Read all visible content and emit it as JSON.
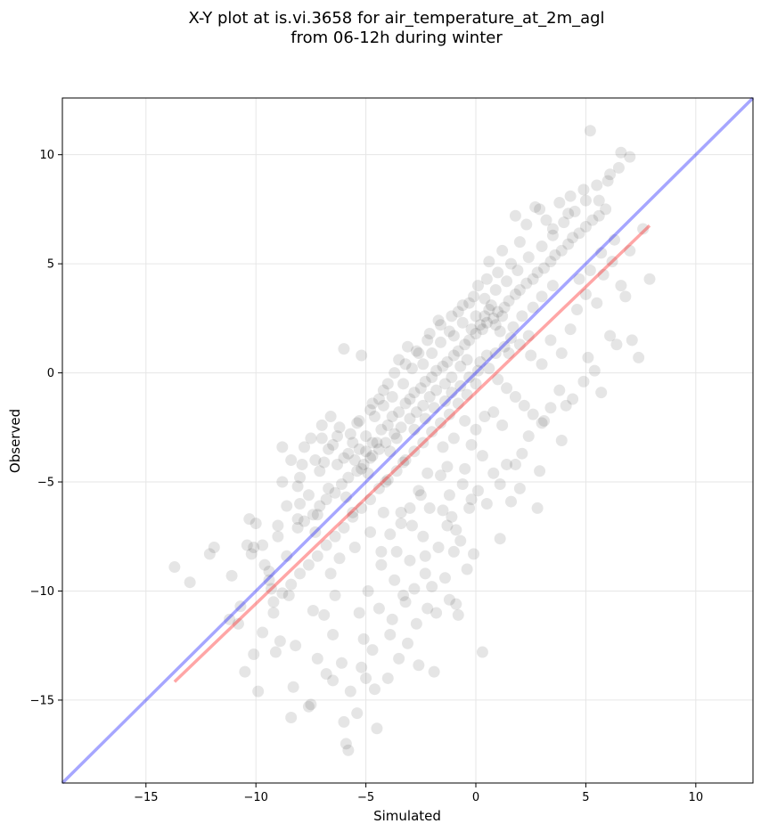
{
  "chart_data": {
    "type": "scatter",
    "title": "X-Y plot at is.vi.3658 for air_temperature_at_2m_agl",
    "subtitle": "from 06-12h during winter",
    "xlabel": "Simulated",
    "ylabel": "Observed",
    "xlim": [
      -18.8,
      12.6
    ],
    "ylim": [
      -18.8,
      12.6
    ],
    "xticks": [
      -15,
      -10,
      -5,
      0,
      5,
      10
    ],
    "yticks": [
      -15,
      -10,
      -5,
      0,
      5,
      10
    ],
    "xtick_labels": [
      "−15",
      "−10",
      "−5",
      "0",
      "5",
      "10"
    ],
    "ytick_labels": [
      "−15",
      "−10",
      "−5",
      "0",
      "5",
      "10"
    ],
    "grid": true,
    "colors": {
      "points": "#000000",
      "identity_line": "#0000ff",
      "fit_line": "#ff0000",
      "grid": "#e6e6e6"
    },
    "points": [
      [
        -13.7,
        -8.9
      ],
      [
        -13.0,
        -9.6
      ],
      [
        -12.1,
        -8.3
      ],
      [
        -11.9,
        -8.0
      ],
      [
        -11.2,
        -11.3
      ],
      [
        -11.1,
        -9.3
      ],
      [
        -10.7,
        -10.7
      ],
      [
        -10.5,
        -13.7
      ],
      [
        -10.3,
        -6.7
      ],
      [
        -10.0,
        -6.9
      ],
      [
        -9.9,
        -14.6
      ],
      [
        -10.4,
        -7.9
      ],
      [
        -10.2,
        -8.3
      ],
      [
        -10.1,
        -8.0
      ],
      [
        -9.7,
        -7.9
      ],
      [
        -9.6,
        -8.8
      ],
      [
        -9.4,
        -9.5
      ],
      [
        -9.3,
        -9.9
      ],
      [
        -9.2,
        -11.0
      ],
      [
        -9.1,
        -12.8
      ],
      [
        -9.0,
        -7.0
      ],
      [
        -8.8,
        -5.0
      ],
      [
        -8.6,
        -8.4
      ],
      [
        -8.5,
        -10.2
      ],
      [
        -8.4,
        -15.8
      ],
      [
        -8.3,
        -14.4
      ],
      [
        -8.2,
        -12.5
      ],
      [
        -8.1,
        -5.2
      ],
      [
        -8.0,
        -6.0
      ],
      [
        -7.9,
        -4.2
      ],
      [
        -7.8,
        -3.4
      ],
      [
        -7.6,
        -15.3
      ],
      [
        -7.5,
        -15.2
      ],
      [
        -7.4,
        -10.9
      ],
      [
        -7.3,
        -7.3
      ],
      [
        -7.2,
        -6.5
      ],
      [
        -7.0,
        -3.0
      ],
      [
        -6.9,
        -11.1
      ],
      [
        -6.8,
        -13.8
      ],
      [
        -6.7,
        -5.3
      ],
      [
        -6.6,
        -9.2
      ],
      [
        -6.5,
        -12.0
      ],
      [
        -6.4,
        -10.2
      ],
      [
        -6.3,
        -2.9
      ],
      [
        -6.2,
        -8.5
      ],
      [
        -6.1,
        -13.3
      ],
      [
        -6.0,
        -16.0
      ],
      [
        -5.9,
        -17.0
      ],
      [
        -5.8,
        -17.3
      ],
      [
        -5.7,
        -14.6
      ],
      [
        -5.6,
        -6.4
      ],
      [
        -5.5,
        -8.0
      ],
      [
        -5.4,
        -2.3
      ],
      [
        -5.3,
        -11.0
      ],
      [
        -5.2,
        -13.5
      ],
      [
        -5.1,
        -12.2
      ],
      [
        -5.0,
        -14.0
      ],
      [
        -4.9,
        -10.0
      ],
      [
        -4.8,
        -7.3
      ],
      [
        -4.7,
        -3.2
      ],
      [
        -4.6,
        -14.5
      ],
      [
        -4.5,
        -16.3
      ],
      [
        -4.4,
        -10.8
      ],
      [
        -4.3,
        -8.8
      ],
      [
        -4.2,
        -6.4
      ],
      [
        -4.1,
        -5.0
      ],
      [
        -4.0,
        -14.0
      ],
      [
        -3.9,
        -12.0
      ],
      [
        -3.8,
        -11.3
      ],
      [
        -3.7,
        -9.5
      ],
      [
        -3.6,
        -8.2
      ],
      [
        -3.5,
        -13.1
      ],
      [
        -3.4,
        -6.4
      ],
      [
        -3.3,
        -4.1
      ],
      [
        -3.2,
        -10.5
      ],
      [
        -3.1,
        -12.4
      ],
      [
        -3.0,
        -8.6
      ],
      [
        -2.9,
        -7.0
      ],
      [
        -2.8,
        -9.9
      ],
      [
        -2.7,
        -11.5
      ],
      [
        -2.6,
        -13.4
      ],
      [
        -2.5,
        -5.6
      ],
      [
        -2.4,
        -7.5
      ],
      [
        -2.3,
        -8.4
      ],
      [
        -2.2,
        -10.8
      ],
      [
        -2.1,
        -6.2
      ],
      [
        -2.0,
        -9.8
      ],
      [
        -1.9,
        -13.7
      ],
      [
        -1.8,
        -11.0
      ],
      [
        -1.7,
        -8.0
      ],
      [
        -1.6,
        -4.7
      ],
      [
        -1.5,
        -6.3
      ],
      [
        -1.4,
        -9.4
      ],
      [
        -1.3,
        -7.0
      ],
      [
        -1.2,
        -5.6
      ],
      [
        -1.1,
        -6.6
      ],
      [
        -1.0,
        -8.2
      ],
      [
        -0.9,
        -10.6
      ],
      [
        -0.8,
        -11.1
      ],
      [
        -0.7,
        -7.7
      ],
      [
        -0.6,
        -5.1
      ],
      [
        -0.5,
        -4.4
      ],
      [
        -0.4,
        -9.0
      ],
      [
        -0.3,
        -6.2
      ],
      [
        -0.2,
        -5.8
      ],
      [
        -0.1,
        -8.3
      ],
      [
        0.1,
        -5.4
      ],
      [
        0.3,
        -12.8
      ],
      [
        0.5,
        -6.0
      ],
      [
        0.8,
        -4.6
      ],
      [
        1.1,
        -5.1
      ],
      [
        1.4,
        -4.2
      ],
      [
        1.6,
        -5.9
      ],
      [
        1.8,
        -4.2
      ],
      [
        2.1,
        -3.7
      ],
      [
        2.4,
        -2.9
      ],
      [
        2.8,
        -6.2
      ],
      [
        3.1,
        -2.2
      ],
      [
        3.4,
        -1.6
      ],
      [
        3.8,
        -0.8
      ],
      [
        4.1,
        -1.5
      ],
      [
        4.4,
        -1.2
      ],
      [
        4.9,
        -0.4
      ],
      [
        5.1,
        0.7
      ],
      [
        5.4,
        0.1
      ],
      [
        5.7,
        -0.9
      ],
      [
        6.1,
        1.7
      ],
      [
        6.4,
        1.3
      ],
      [
        6.8,
        3.5
      ],
      [
        7.1,
        1.5
      ],
      [
        7.4,
        0.7
      ],
      [
        7.9,
        4.3
      ],
      [
        7.6,
        6.6
      ],
      [
        7.0,
        9.9
      ],
      [
        6.6,
        10.1
      ],
      [
        6.1,
        9.1
      ],
      [
        5.6,
        7.9
      ],
      [
        5.2,
        11.1
      ],
      [
        4.9,
        8.4
      ],
      [
        4.2,
        7.3
      ],
      [
        3.5,
        6.6
      ],
      [
        2.9,
        7.5
      ],
      [
        2.3,
        6.8
      ],
      [
        1.8,
        7.2
      ],
      [
        1.2,
        5.6
      ],
      [
        0.6,
        5.1
      ],
      [
        0.1,
        4.0
      ],
      [
        -0.3,
        3.2
      ],
      [
        -0.8,
        2.8
      ],
      [
        -1.2,
        1.9
      ],
      [
        -1.7,
        2.4
      ],
      [
        -2.1,
        1.8
      ],
      [
        -2.6,
        0.9
      ],
      [
        -3.1,
        1.2
      ],
      [
        -3.5,
        0.6
      ],
      [
        -4.0,
        -0.5
      ],
      [
        -4.4,
        -1.2
      ],
      [
        -4.8,
        -1.7
      ],
      [
        -5.2,
        0.8
      ],
      [
        -5.7,
        -2.8
      ],
      [
        -6.0,
        1.1
      ],
      [
        -6.5,
        -3.3
      ],
      [
        -6.9,
        -4.1
      ],
      [
        -7.3,
        -4.0
      ],
      [
        -7.6,
        -5.6
      ],
      [
        -8.1,
        -6.7
      ],
      [
        -8.6,
        -6.1
      ],
      [
        -9.0,
        -7.5
      ],
      [
        -9.4,
        -9.1
      ],
      [
        -5.5,
        -4.0
      ],
      [
        -5.2,
        -4.4
      ],
      [
        -5.0,
        -3.6
      ],
      [
        -4.8,
        -3.9
      ],
      [
        -5.3,
        -3.5
      ],
      [
        -5.8,
        -3.7
      ],
      [
        -4.5,
        -3.2
      ],
      [
        -4.3,
        -2.6
      ],
      [
        -4.0,
        -2.4
      ],
      [
        -3.8,
        -2.0
      ],
      [
        -3.5,
        -1.8
      ],
      [
        -3.2,
        -1.4
      ],
      [
        -3.0,
        -1.2
      ],
      [
        -2.8,
        -0.9
      ],
      [
        -2.5,
        -0.7
      ],
      [
        -2.3,
        -0.4
      ],
      [
        -2.0,
        -0.2
      ],
      [
        -1.8,
        0.1
      ],
      [
        -1.5,
        0.3
      ],
      [
        -1.3,
        0.5
      ],
      [
        -1.0,
        0.8
      ],
      [
        -0.8,
        1.0
      ],
      [
        -0.5,
        1.3
      ],
      [
        -0.3,
        1.5
      ],
      [
        0.0,
        1.8
      ],
      [
        0.3,
        2.0
      ],
      [
        0.5,
        2.3
      ],
      [
        0.8,
        2.5
      ],
      [
        1.0,
        2.8
      ],
      [
        1.3,
        3.0
      ],
      [
        1.5,
        3.3
      ],
      [
        1.8,
        3.6
      ],
      [
        2.0,
        3.8
      ],
      [
        2.3,
        4.1
      ],
      [
        2.6,
        4.3
      ],
      [
        2.8,
        4.6
      ],
      [
        3.1,
        4.8
      ],
      [
        3.4,
        5.1
      ],
      [
        3.6,
        5.4
      ],
      [
        3.9,
        5.6
      ],
      [
        4.2,
        5.9
      ],
      [
        4.4,
        6.2
      ],
      [
        4.7,
        6.4
      ],
      [
        5.0,
        6.7
      ],
      [
        5.3,
        7.0
      ],
      [
        5.6,
        7.2
      ],
      [
        5.9,
        7.5
      ],
      [
        0.6,
        2.9
      ],
      [
        0.9,
        2.2
      ],
      [
        1.1,
        1.9
      ],
      [
        0.4,
        2.6
      ],
      [
        0.7,
        3.1
      ],
      [
        1.2,
        2.6
      ],
      [
        0.2,
        2.2
      ],
      [
        -0.2,
        2.0
      ],
      [
        -0.4,
        0.6
      ],
      [
        -0.7,
        0.3
      ],
      [
        -1.1,
        -0.2
      ],
      [
        -1.4,
        -0.5
      ],
      [
        -1.8,
        -0.8
      ],
      [
        -2.1,
        -1.1
      ],
      [
        -2.4,
        -1.5
      ],
      [
        -2.7,
        -1.8
      ],
      [
        -3.0,
        -2.1
      ],
      [
        -3.4,
        -2.5
      ],
      [
        -3.7,
        -2.8
      ],
      [
        -4.1,
        -3.2
      ],
      [
        -4.4,
        -3.5
      ],
      [
        -4.7,
        -3.8
      ],
      [
        -5.1,
        -4.2
      ],
      [
        -5.4,
        -4.5
      ],
      [
        -5.8,
        -4.8
      ],
      [
        -6.1,
        -5.1
      ],
      [
        -6.4,
        -5.5
      ],
      [
        -6.8,
        -5.8
      ],
      [
        -7.1,
        -6.1
      ],
      [
        -7.4,
        -6.5
      ],
      [
        -7.8,
        -6.8
      ],
      [
        -8.1,
        -7.1
      ],
      [
        -6.3,
        -4.2
      ],
      [
        -6.7,
        -3.5
      ],
      [
        -7.1,
        -4.5
      ],
      [
        -7.5,
        -3.0
      ],
      [
        -8.0,
        -4.8
      ],
      [
        -8.4,
        -4.0
      ],
      [
        -8.8,
        -3.4
      ],
      [
        -6.0,
        -3.9
      ],
      [
        -5.6,
        -3.2
      ],
      [
        -5.0,
        -2.9
      ],
      [
        -4.6,
        -2.0
      ],
      [
        -4.2,
        -1.5
      ],
      [
        -3.8,
        -1.1
      ],
      [
        -3.3,
        -0.5
      ],
      [
        -2.9,
        0.2
      ],
      [
        -2.4,
        0.4
      ],
      [
        -2.0,
        0.9
      ],
      [
        -1.6,
        1.4
      ],
      [
        -1.0,
        1.7
      ],
      [
        -0.6,
        2.3
      ],
      [
        0.0,
        2.6
      ],
      [
        0.4,
        3.4
      ],
      [
        0.9,
        3.8
      ],
      [
        1.4,
        4.2
      ],
      [
        1.9,
        4.7
      ],
      [
        2.4,
        5.3
      ],
      [
        3.0,
        5.8
      ],
      [
        3.5,
        6.3
      ],
      [
        4.0,
        6.9
      ],
      [
        4.5,
        7.4
      ],
      [
        5.0,
        7.9
      ],
      [
        5.5,
        8.6
      ],
      [
        6.0,
        8.8
      ],
      [
        6.5,
        9.4
      ],
      [
        2.0,
        6.0
      ],
      [
        2.7,
        7.6
      ],
      [
        1.6,
        5.0
      ],
      [
        3.2,
        7.0
      ],
      [
        3.8,
        7.8
      ],
      [
        4.3,
        8.1
      ],
      [
        1.0,
        4.6
      ],
      [
        0.5,
        4.3
      ],
      [
        -0.1,
        3.5
      ],
      [
        -0.6,
        3.1
      ],
      [
        -1.1,
        2.6
      ],
      [
        -1.6,
        2.2
      ],
      [
        -2.2,
        1.5
      ],
      [
        -2.7,
        1.0
      ],
      [
        -3.2,
        0.4
      ],
      [
        -3.7,
        0.0
      ],
      [
        -4.2,
        -0.8
      ],
      [
        -4.7,
        -1.4
      ],
      [
        -5.3,
        -2.2
      ],
      [
        -6.2,
        -2.5
      ],
      [
        -6.6,
        -2.0
      ],
      [
        -7.0,
        -2.4
      ],
      [
        0.2,
        0.5
      ],
      [
        0.6,
        0.2
      ],
      [
        1.0,
        -0.3
      ],
      [
        1.4,
        -0.7
      ],
      [
        1.8,
        -1.1
      ],
      [
        2.2,
        -1.5
      ],
      [
        2.6,
        -1.9
      ],
      [
        3.0,
        -2.3
      ],
      [
        0.0,
        -0.5
      ],
      [
        -0.4,
        -1.0
      ],
      [
        -0.8,
        -1.4
      ],
      [
        -1.2,
        -1.9
      ],
      [
        -1.6,
        -2.3
      ],
      [
        -2.0,
        -2.7
      ],
      [
        -2.4,
        -3.2
      ],
      [
        -2.8,
        -3.6
      ],
      [
        -3.2,
        -4.0
      ],
      [
        -3.6,
        -4.5
      ],
      [
        -4.0,
        -4.9
      ],
      [
        -4.4,
        -5.3
      ],
      [
        -4.8,
        -5.8
      ],
      [
        -5.2,
        -6.2
      ],
      [
        -5.6,
        -6.6
      ],
      [
        -6.0,
        -7.1
      ],
      [
        -6.4,
        -7.5
      ],
      [
        -6.8,
        -7.9
      ],
      [
        -7.2,
        -8.4
      ],
      [
        -7.6,
        -8.8
      ],
      [
        -8.0,
        -9.2
      ],
      [
        -8.4,
        -9.7
      ],
      [
        -8.8,
        -10.1
      ],
      [
        -9.2,
        -10.5
      ],
      [
        0.8,
        -1.8
      ],
      [
        1.2,
        -2.4
      ],
      [
        0.4,
        -2.0
      ],
      [
        0.0,
        -2.6
      ],
      [
        -0.5,
        -2.2
      ],
      [
        -1.0,
        -3.0
      ],
      [
        -1.5,
        -3.4
      ],
      [
        -0.2,
        -3.3
      ],
      [
        0.3,
        -3.8
      ],
      [
        -1.3,
        -4.3
      ],
      [
        -2.2,
        -4.6
      ],
      [
        -2.6,
        -5.4
      ],
      [
        -3.0,
        -6.2
      ],
      [
        -3.4,
        -6.9
      ],
      [
        -3.9,
        -7.4
      ],
      [
        -4.3,
        -8.2
      ],
      [
        2.5,
        0.8
      ],
      [
        3.0,
        0.4
      ],
      [
        3.4,
        1.5
      ],
      [
        3.9,
        0.9
      ],
      [
        4.3,
        2.0
      ],
      [
        4.6,
        2.9
      ],
      [
        5.0,
        3.6
      ],
      [
        5.5,
        3.2
      ],
      [
        5.8,
        4.5
      ],
      [
        6.2,
        5.1
      ],
      [
        6.6,
        4.0
      ],
      [
        7.0,
        5.6
      ],
      [
        6.3,
        6.1
      ],
      [
        5.7,
        5.5
      ],
      [
        5.2,
        4.7
      ],
      [
        4.7,
        4.3
      ],
      [
        1.5,
        0.9
      ],
      [
        2.0,
        1.3
      ],
      [
        2.4,
        1.7
      ],
      [
        1.7,
        2.1
      ],
      [
        2.1,
        2.6
      ],
      [
        2.6,
        3.0
      ],
      [
        3.0,
        3.5
      ],
      [
        3.5,
        4.0
      ],
      [
        -1.4,
        -1.3
      ],
      [
        -1.9,
        -1.6
      ],
      [
        -2.3,
        -2.1
      ],
      [
        -2.8,
        -2.6
      ],
      [
        -3.6,
        -3.0
      ],
      [
        -3.9,
        -3.6
      ],
      [
        -4.9,
        -4.6
      ],
      [
        -5.9,
        -5.7
      ],
      [
        0.9,
        0.9
      ],
      [
        1.3,
        1.2
      ],
      [
        0.5,
        0.8
      ],
      [
        0.1,
        0.1
      ],
      [
        -0.3,
        -0.2
      ],
      [
        -0.7,
        -0.6
      ],
      [
        -1.1,
        -0.9
      ],
      [
        1.6,
        1.6
      ],
      [
        -10.8,
        -11.5
      ],
      [
        -10.1,
        -12.9
      ],
      [
        -9.7,
        -11.9
      ],
      [
        -8.9,
        -12.3
      ],
      [
        -7.2,
        -13.1
      ],
      [
        -6.5,
        -14.1
      ],
      [
        -5.4,
        -15.6
      ],
      [
        -4.7,
        -12.7
      ],
      [
        -3.3,
        -10.2
      ],
      [
        -2.3,
        -9.2
      ],
      [
        -1.2,
        -10.4
      ],
      [
        -0.9,
        -7.2
      ],
      [
        1.1,
        -7.6
      ],
      [
        2.0,
        -5.3
      ],
      [
        2.9,
        -4.5
      ],
      [
        3.9,
        -3.1
      ]
    ]
  }
}
